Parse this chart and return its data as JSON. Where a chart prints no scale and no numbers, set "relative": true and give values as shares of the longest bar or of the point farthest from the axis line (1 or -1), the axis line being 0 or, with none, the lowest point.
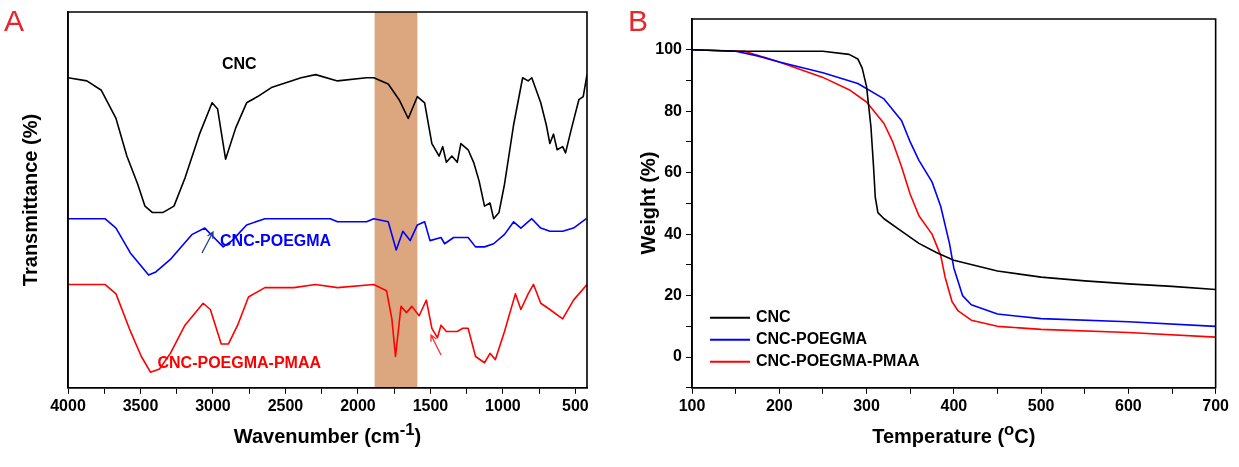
{
  "chart_data": [
    {
      "type": "line",
      "title": "A",
      "xlabel": "Wavenumber (cm$^{-1}$)",
      "ylabel": "Transmittance (%)",
      "relative": true,
      "tick_labels": "x",
      "legend": false,
      "grid": false,
      "xlim": [
        4000,
        420
      ],
      "xticks": [
        4000,
        {
          "value": 3750,
          "label": null
        },
        3500,
        {
          "value": 3250,
          "label": null
        },
        3000,
        {
          "value": 2750,
          "label": null
        },
        2500,
        {
          "value": 2250,
          "label": null
        },
        2000,
        {
          "value": 1750,
          "label": null
        },
        1500,
        {
          "value": 1250,
          "label": null
        },
        1000,
        {
          "value": 750,
          "label": null
        },
        500
      ],
      "bands": [
        {
          "axis": "x",
          "from": 1885,
          "to": 1590,
          "color": "#dca77f"
        }
      ],
      "series": [
        {
          "name": "CNC",
          "color": "#000000",
          "x": [
            4000,
            3870,
            3770,
            3669,
            3594,
            3519,
            3469,
            3419,
            3344,
            3269,
            3193,
            3093,
            3006,
            2968,
            2913,
            2843,
            2768,
            2692,
            2592,
            2392,
            2292,
            2141,
            1941,
            1891,
            1791,
            1716,
            1653,
            1590,
            1540,
            1490,
            1440,
            1415,
            1390,
            1352,
            1315,
            1290,
            1240,
            1202,
            1164,
            1127,
            1089,
            1064,
            1027,
            989,
            926,
            864,
            826,
            801,
            739,
            701,
            676,
            651,
            626,
            588,
            568,
            526,
            476,
            446,
            420
          ],
          "values": [
            0.99,
            0.98,
            0.95,
            0.86,
            0.74,
            0.65,
            0.58,
            0.56,
            0.56,
            0.58,
            0.67,
            0.81,
            0.91,
            0.89,
            0.73,
            0.83,
            0.91,
            0.93,
            0.96,
            0.99,
            1.0,
            0.98,
            0.99,
            0.99,
            0.97,
            0.92,
            0.86,
            0.93,
            0.91,
            0.78,
            0.74,
            0.77,
            0.72,
            0.74,
            0.72,
            0.78,
            0.76,
            0.72,
            0.66,
            0.58,
            0.59,
            0.54,
            0.56,
            0.65,
            0.84,
            0.99,
            0.98,
            0.99,
            0.91,
            0.84,
            0.78,
            0.81,
            0.76,
            0.77,
            0.75,
            0.83,
            0.92,
            0.93,
            1.0
          ]
        },
        {
          "name": "CNC-POEGMA",
          "color": "#0000ff",
          "x": [
            4000,
            3745,
            3669,
            3569,
            3444,
            3394,
            3294,
            3143,
            3056,
            2993,
            2930,
            2868,
            2768,
            2642,
            2392,
            2191,
            2141,
            1941,
            1891,
            1791,
            1736,
            1690,
            1640,
            1590,
            1540,
            1503,
            1427,
            1402,
            1340,
            1240,
            1189,
            1127,
            1064,
            989,
            926,
            876,
            801,
            739,
            676,
            588,
            513,
            425
          ],
          "values": [
            0.54,
            0.54,
            0.51,
            0.43,
            0.36,
            0.37,
            0.41,
            0.49,
            0.51,
            0.48,
            0.45,
            0.47,
            0.52,
            0.54,
            0.54,
            0.54,
            0.53,
            0.53,
            0.54,
            0.53,
            0.44,
            0.5,
            0.47,
            0.52,
            0.53,
            0.47,
            0.48,
            0.46,
            0.48,
            0.48,
            0.45,
            0.45,
            0.46,
            0.49,
            0.53,
            0.51,
            0.54,
            0.51,
            0.5,
            0.5,
            0.51,
            0.54
          ]
        },
        {
          "name": "CNC-POEGMA-PMAA",
          "color": "#ff0000",
          "x": [
            4000,
            3745,
            3669,
            3569,
            3494,
            3431,
            3369,
            3294,
            3193,
            3068,
            3018,
            2943,
            2893,
            2830,
            2755,
            2642,
            2442,
            2292,
            2141,
            1891,
            1803,
            1766,
            1741,
            1703,
            1665,
            1628,
            1578,
            1528,
            1490,
            1452,
            1427,
            1390,
            1315,
            1277,
            1240,
            1189,
            1127,
            1089,
            1052,
            989,
            914,
            876,
            826,
            789,
            739,
            676,
            588,
            513,
            420
          ],
          "values": [
            0.33,
            0.33,
            0.3,
            0.18,
            0.1,
            0.05,
            0.06,
            0.11,
            0.2,
            0.27,
            0.25,
            0.14,
            0.14,
            0.2,
            0.29,
            0.32,
            0.32,
            0.33,
            0.32,
            0.33,
            0.31,
            0.22,
            0.1,
            0.26,
            0.24,
            0.26,
            0.23,
            0.28,
            0.19,
            0.16,
            0.2,
            0.18,
            0.18,
            0.19,
            0.19,
            0.1,
            0.08,
            0.11,
            0.09,
            0.18,
            0.3,
            0.25,
            0.3,
            0.33,
            0.27,
            0.25,
            0.22,
            0.28,
            0.33
          ]
        }
      ]
    },
    {
      "type": "line",
      "title": "B",
      "xlabel": "Temperature ($^{o}$C)",
      "ylabel": "Weight (%)",
      "legend": "bottom left",
      "grid": false,
      "xlim": [
        100,
        700
      ],
      "xticks": [
        100,
        {
          "value": 150,
          "label": null
        },
        200,
        {
          "value": 250,
          "label": null
        },
        300,
        {
          "value": 350,
          "label": null
        },
        400,
        {
          "value": 450,
          "label": null
        },
        500,
        {
          "value": 550,
          "label": null
        },
        600,
        {
          "value": 650,
          "label": null
        },
        700
      ],
      "ylim": [
        -10,
        110
      ],
      "yticks": [
        {
          "value": -10,
          "label": null
        },
        0,
        {
          "value": 10,
          "label": null
        },
        20,
        {
          "value": 30,
          "label": null
        },
        40,
        {
          "value": 50,
          "label": null
        },
        60,
        {
          "value": 70,
          "label": null
        },
        80,
        {
          "value": 90,
          "label": null
        },
        100
      ],
      "series": [
        {
          "name": "CNC",
          "color": "#000000",
          "x": [
            100,
            150,
            250,
            280,
            290,
            295,
            300,
            305,
            308,
            310,
            313,
            320,
            340,
            360,
            380,
            400,
            450,
            500,
            550,
            600,
            650,
            700
          ],
          "values": [
            100,
            99.5,
            99.5,
            98.5,
            97,
            94,
            88,
            75,
            62,
            52,
            47,
            45,
            41,
            37,
            34,
            31.5,
            28,
            26,
            24.8,
            23.8,
            23,
            22
          ]
        },
        {
          "name": "CNC-POEGMA",
          "color": "#0000ff",
          "x": [
            100,
            150,
            175,
            200,
            250,
            290,
            320,
            340,
            350,
            360,
            375,
            385,
            395,
            400,
            410,
            420,
            450,
            500,
            600,
            700
          ],
          "values": [
            100,
            99.5,
            98,
            96,
            92.5,
            89,
            84,
            77,
            70,
            64,
            57,
            49,
            37,
            29,
            20,
            17,
            14,
            12.5,
            11.5,
            10
          ]
        },
        {
          "name": "CNC-POEGMA-PMAA",
          "color": "#ff0000",
          "x": [
            100,
            160,
            200,
            250,
            280,
            300,
            320,
            330,
            340,
            350,
            360,
            375,
            385,
            390,
            398,
            405,
            420,
            450,
            500,
            600,
            700
          ],
          "values": [
            100,
            99.5,
            96,
            91,
            87,
            83,
            76,
            70,
            62,
            53,
            46,
            40,
            33,
            26,
            18,
            15,
            12,
            10,
            9,
            8,
            6.5
          ]
        }
      ]
    }
  ]
}
